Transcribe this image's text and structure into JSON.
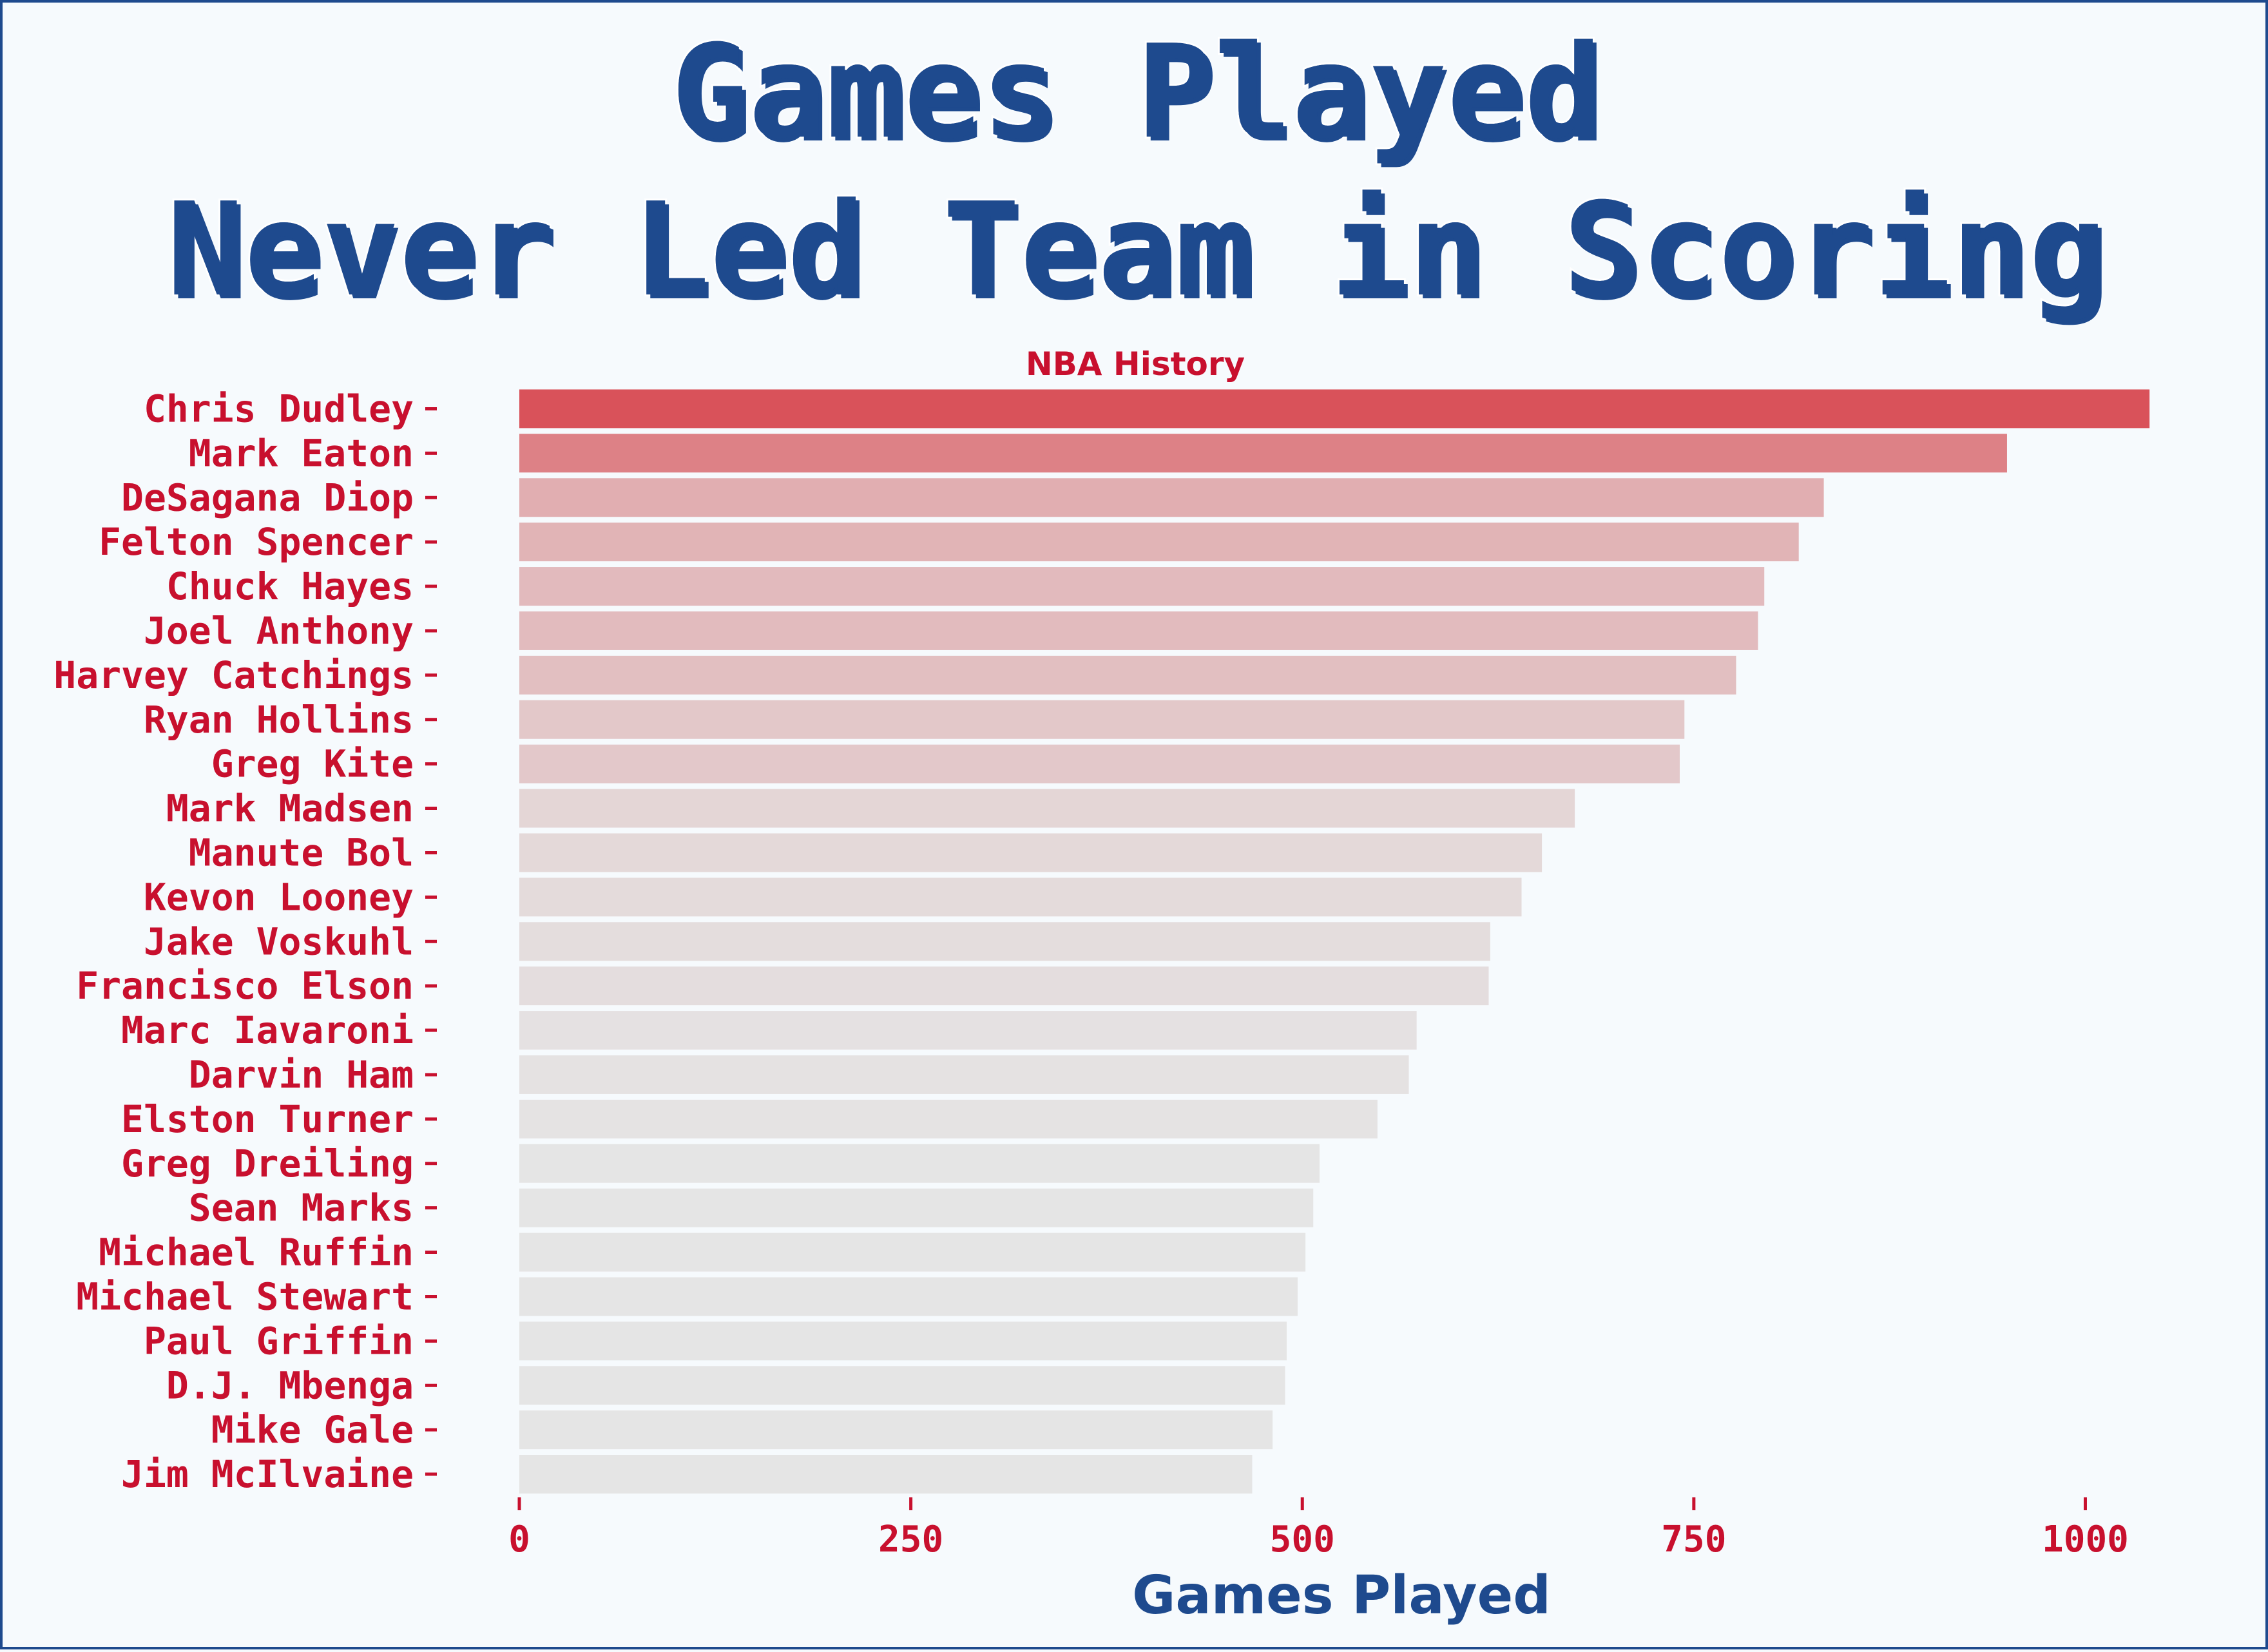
{
  "title_lines": [
    "Games Played",
    "Never Led Team in Scoring"
  ],
  "colors": {
    "accent_red": "#c8102e",
    "accent_blue": "#1e4a8e",
    "bar_max": "#d9525a",
    "bar_min": "#e5e5e5",
    "background": "#f6fafd"
  },
  "chart_data": {
    "type": "bar",
    "orientation": "horizontal",
    "title": "Games Played\nNever Led Team in Scoring",
    "subtitle": "NBA History",
    "xlabel": "Games Played",
    "ylabel": "",
    "xlim": [
      0,
      1050
    ],
    "xticks": [
      0,
      250,
      500,
      750,
      1000
    ],
    "grid": false,
    "categories": [
      "Chris Dudley",
      "Mark Eaton",
      "DeSagana Diop",
      "Felton Spencer",
      "Chuck Hayes",
      "Joel Anthony",
      "Harvey Catchings",
      "Ryan Hollins",
      "Greg Kite",
      "Mark Madsen",
      "Manute Bol",
      "Kevon Looney",
      "Jake Voskuhl",
      "Francisco Elson",
      "Marc Iavaroni",
      "Darvin Ham",
      "Elston Turner",
      "Greg Dreiling",
      "Sean Marks",
      "Michael Ruffin",
      "Michael Stewart",
      "Paul Griffin",
      "D.J. Mbenga",
      "Mike Gale",
      "Jim McIlvaine"
    ],
    "values": [
      1041,
      950,
      833,
      817,
      795,
      791,
      777,
      744,
      741,
      674,
      653,
      640,
      620,
      619,
      573,
      568,
      548,
      511,
      507,
      502,
      497,
      490,
      489,
      481,
      468
    ]
  }
}
